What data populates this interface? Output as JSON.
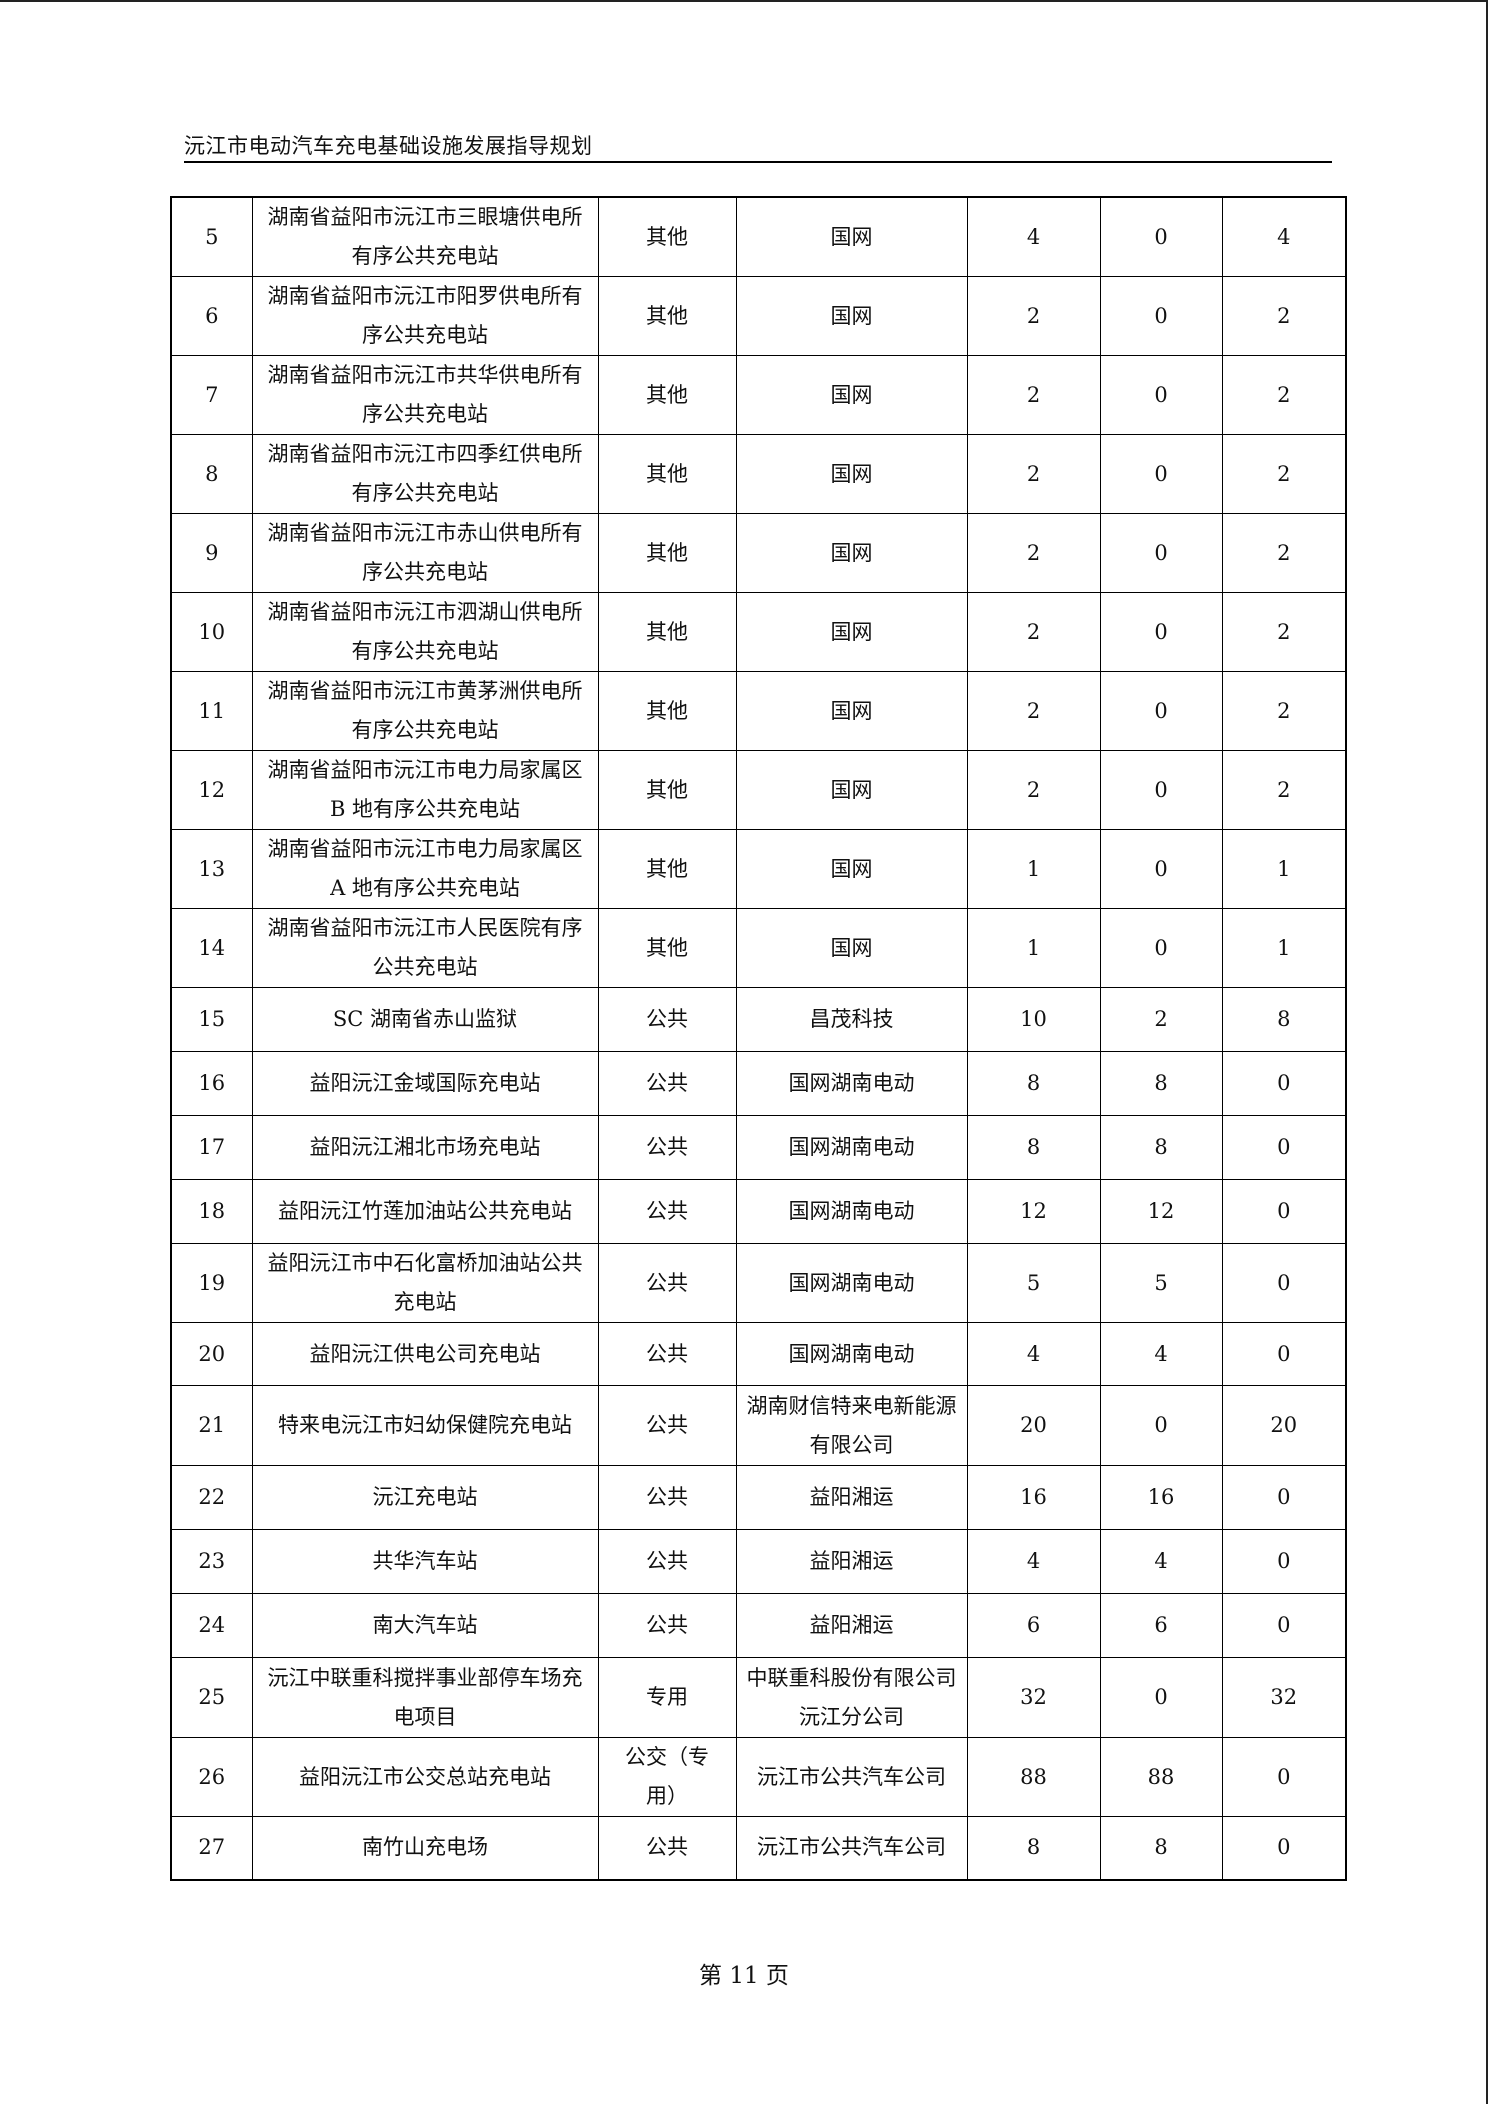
{
  "header": {
    "title": "沅江市电动汽车充电基础设施发展指导规划"
  },
  "table": {
    "rows": [
      [
        "5",
        "湖南省益阳市沅江市三眼塘供电所有序公共充电站",
        "其他",
        "国网",
        "4",
        "0",
        "4"
      ],
      [
        "6",
        "湖南省益阳市沅江市阳罗供电所有序公共充电站",
        "其他",
        "国网",
        "2",
        "0",
        "2"
      ],
      [
        "7",
        "湖南省益阳市沅江市共华供电所有序公共充电站",
        "其他",
        "国网",
        "2",
        "0",
        "2"
      ],
      [
        "8",
        "湖南省益阳市沅江市四季红供电所有序公共充电站",
        "其他",
        "国网",
        "2",
        "0",
        "2"
      ],
      [
        "9",
        "湖南省益阳市沅江市赤山供电所有序公共充电站",
        "其他",
        "国网",
        "2",
        "0",
        "2"
      ],
      [
        "10",
        "湖南省益阳市沅江市泗湖山供电所有序公共充电站",
        "其他",
        "国网",
        "2",
        "0",
        "2"
      ],
      [
        "11",
        "湖南省益阳市沅江市黄茅洲供电所有序公共充电站",
        "其他",
        "国网",
        "2",
        "0",
        "2"
      ],
      [
        "12",
        "湖南省益阳市沅江市电力局家属区 B 地有序公共充电站",
        "其他",
        "国网",
        "2",
        "0",
        "2"
      ],
      [
        "13",
        "湖南省益阳市沅江市电力局家属区 A 地有序公共充电站",
        "其他",
        "国网",
        "1",
        "0",
        "1"
      ],
      [
        "14",
        "湖南省益阳市沅江市人民医院有序公共充电站",
        "其他",
        "国网",
        "1",
        "0",
        "1"
      ],
      [
        "15",
        "SC 湖南省赤山监狱",
        "公共",
        "昌茂科技",
        "10",
        "2",
        "8"
      ],
      [
        "16",
        "益阳沅江金域国际充电站",
        "公共",
        "国网湖南电动",
        "8",
        "8",
        "0"
      ],
      [
        "17",
        "益阳沅江湘北市场充电站",
        "公共",
        "国网湖南电动",
        "8",
        "8",
        "0"
      ],
      [
        "18",
        "益阳沅江竹莲加油站公共充电站",
        "公共",
        "国网湖南电动",
        "12",
        "12",
        "0"
      ],
      [
        "19",
        "益阳沅江市中石化富桥加油站公共充电站",
        "公共",
        "国网湖南电动",
        "5",
        "5",
        "0"
      ],
      [
        "20",
        "益阳沅江供电公司充电站",
        "公共",
        "国网湖南电动",
        "4",
        "4",
        "0"
      ],
      [
        "21",
        "特来电沅江市妇幼保健院充电站",
        "公共",
        "湖南财信特来电新能源有限公司",
        "20",
        "0",
        "20"
      ],
      [
        "22",
        "沅江充电站",
        "公共",
        "益阳湘运",
        "16",
        "16",
        "0"
      ],
      [
        "23",
        "共华汽车站",
        "公共",
        "益阳湘运",
        "4",
        "4",
        "0"
      ],
      [
        "24",
        "南大汽车站",
        "公共",
        "益阳湘运",
        "6",
        "6",
        "0"
      ],
      [
        "25",
        "沅江中联重科搅拌事业部停车场充电项目",
        "专用",
        "中联重科股份有限公司沅江分公司",
        "32",
        "0",
        "32"
      ],
      [
        "26",
        "益阳沅江市公交总站充电站",
        "公交（专用）",
        "沅江市公共汽车公司",
        "88",
        "88",
        "0"
      ],
      [
        "27",
        "南竹山充电场",
        "公共",
        "沅江市公共汽车公司",
        "8",
        "8",
        "0"
      ]
    ]
  },
  "footer": {
    "page_label": "第 11 页"
  }
}
